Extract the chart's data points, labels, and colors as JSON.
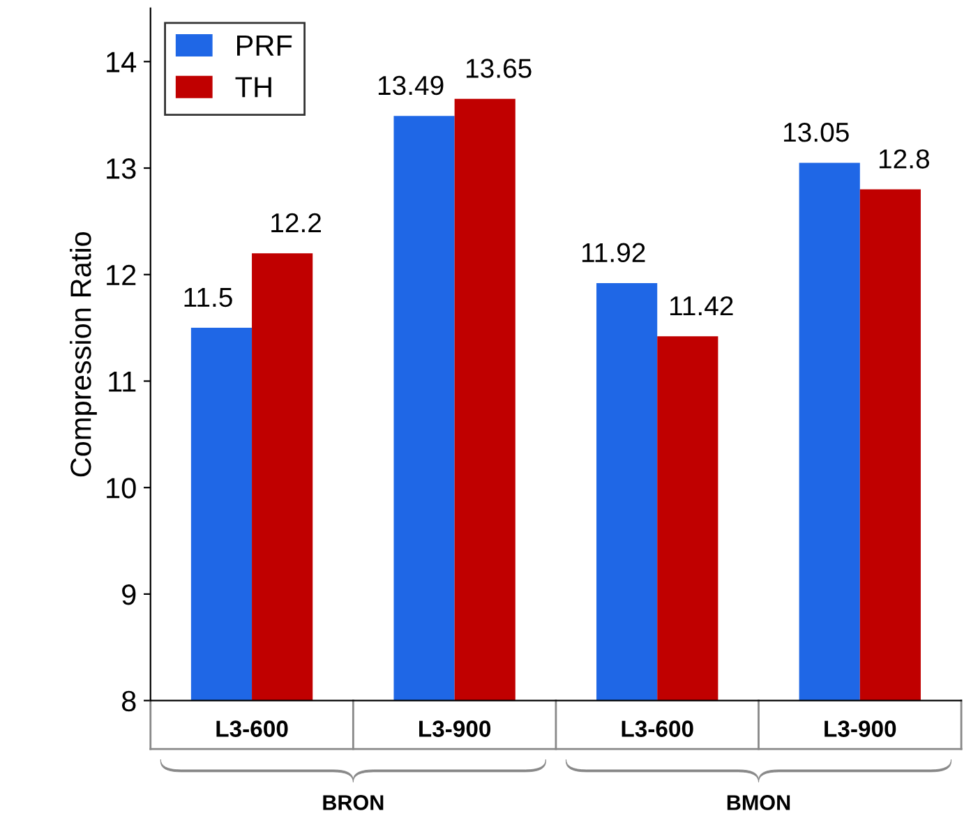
{
  "chart_data": {
    "type": "bar",
    "ylabel": "Compression Ratio",
    "categories": [
      "L3-600",
      "L3-900",
      "L3-600",
      "L3-900"
    ],
    "series": [
      {
        "name": "PRF",
        "color": "#1f67e6",
        "values": [
          11.5,
          13.49,
          11.92,
          13.05
        ]
      },
      {
        "name": "TH",
        "color": "#c00000",
        "values": [
          12.2,
          13.65,
          11.42,
          12.8
        ]
      }
    ],
    "ylim": [
      8,
      14.5
    ],
    "yticks": [
      8,
      9,
      10,
      11,
      12,
      13,
      14
    ],
    "data_labels": true,
    "legend": "top left",
    "grid": false,
    "annotations": [
      "BRON",
      "BMON"
    ]
  }
}
